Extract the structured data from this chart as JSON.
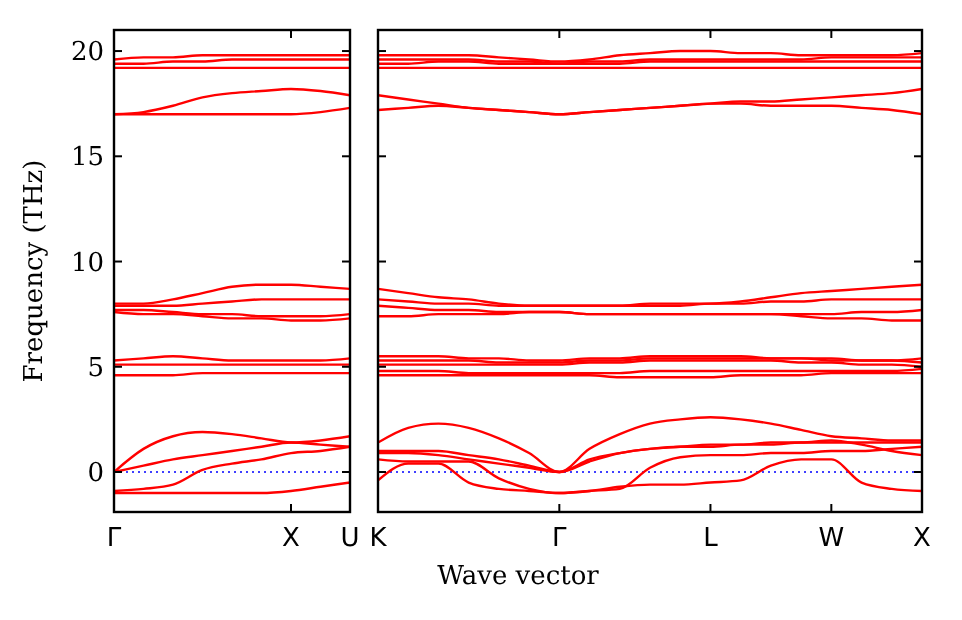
{
  "chart_data": [
    {
      "type": "line",
      "ylabel": "Frequency (THz)",
      "categories": [
        "Γ",
        null,
        null,
        null,
        null,
        null,
        "X",
        null,
        "U"
      ],
      "ylim": [
        -1.9,
        21
      ],
      "yticks": [
        0,
        5,
        10,
        15,
        20
      ],
      "line_style": "solid",
      "marker": "none",
      "ref_lines": [
        {
          "axis": "y",
          "value": 0,
          "color": "#0000ff",
          "line_style": "dotted"
        }
      ],
      "series": [
        {
          "color": "#ff0000",
          "values": [
            -1,
            -1,
            -1,
            -1,
            -1,
            -1,
            -0.9,
            -0.7,
            -0.5
          ]
        },
        {
          "color": "#ff0000",
          "values": [
            -0.9,
            -0.8,
            -0.6,
            0.1,
            0.4,
            0.6,
            0.9,
            1.0,
            1.2
          ]
        },
        {
          "color": "#ff0000",
          "values": [
            0,
            0.3,
            0.6,
            0.8,
            1.0,
            1.2,
            1.4,
            1.3,
            1.2
          ]
        },
        {
          "color": "#ff0000",
          "values": [
            0,
            1.1,
            1.7,
            1.9,
            1.8,
            1.6,
            1.4,
            1.5,
            1.7
          ]
        },
        {
          "color": "#ff0000",
          "values": [
            4.6,
            4.6,
            4.6,
            4.7,
            4.7,
            4.7,
            4.7,
            4.7,
            4.7
          ]
        },
        {
          "color": "#ff0000",
          "values": [
            5.1,
            5.1,
            5.1,
            5.1,
            5.1,
            5.1,
            5.1,
            5.1,
            5.1
          ]
        },
        {
          "color": "#ff0000",
          "values": [
            5.3,
            5.4,
            5.5,
            5.4,
            5.3,
            5.3,
            5.3,
            5.3,
            5.4
          ]
        },
        {
          "color": "#ff0000",
          "values": [
            8.0,
            8.0,
            8.2,
            8.5,
            8.8,
            8.9,
            8.9,
            8.8,
            8.7
          ]
        },
        {
          "color": "#ff0000",
          "values": [
            7.9,
            7.9,
            7.9,
            8.0,
            8.1,
            8.2,
            8.2,
            8.2,
            8.2
          ]
        },
        {
          "color": "#ff0000",
          "values": [
            7.7,
            7.7,
            7.6,
            7.5,
            7.5,
            7.4,
            7.4,
            7.4,
            7.5
          ]
        },
        {
          "color": "#ff0000",
          "values": [
            7.6,
            7.5,
            7.5,
            7.4,
            7.3,
            7.3,
            7.2,
            7.2,
            7.3
          ]
        },
        {
          "color": "#ff0000",
          "values": [
            17.0,
            17.0,
            17.0,
            17.0,
            17.0,
            17.0,
            17.0,
            17.1,
            17.3
          ]
        },
        {
          "color": "#ff0000",
          "values": [
            17.0,
            17.1,
            17.4,
            17.8,
            18.0,
            18.1,
            18.2,
            18.1,
            17.9
          ]
        },
        {
          "color": "#ff0000",
          "values": [
            19.2,
            19.2,
            19.2,
            19.2,
            19.2,
            19.2,
            19.2,
            19.2,
            19.2
          ]
        },
        {
          "color": "#ff0000",
          "values": [
            19.4,
            19.4,
            19.5,
            19.5,
            19.6,
            19.6,
            19.6,
            19.6,
            19.6
          ]
        },
        {
          "color": "#ff0000",
          "values": [
            19.6,
            19.7,
            19.7,
            19.8,
            19.8,
            19.8,
            19.8,
            19.8,
            19.8
          ]
        }
      ]
    },
    {
      "type": "line",
      "xlabel": "Wave vector",
      "tick_labels": "x",
      "categories": [
        "K",
        null,
        null,
        null,
        null,
        null,
        "Γ",
        null,
        null,
        null,
        null,
        "L",
        null,
        null,
        null,
        "W",
        null,
        null,
        "X"
      ],
      "ylim": [
        -1.9,
        21
      ],
      "yticks": [
        0,
        5,
        10,
        15,
        20
      ],
      "line_style": "solid",
      "marker": "none",
      "ref_lines": [
        {
          "axis": "y",
          "value": 0,
          "color": "#0000ff",
          "line_style": "dotted"
        }
      ],
      "series": [
        {
          "color": "#ff0000",
          "values": [
            -0.4,
            0.4,
            0.4,
            -0.5,
            -0.8,
            -0.9,
            -1.0,
            -0.9,
            -0.7,
            -0.6,
            -0.6,
            -0.5,
            -0.4,
            0.3,
            0.6,
            0.6,
            -0.5,
            -0.8,
            -0.9
          ]
        },
        {
          "color": "#ff0000",
          "values": [
            0.6,
            0.5,
            0.5,
            0.5,
            -0.3,
            -0.8,
            -1.0,
            -0.9,
            -0.8,
            0.2,
            0.7,
            0.8,
            0.8,
            0.9,
            0.9,
            1.0,
            1.0,
            1.1,
            1.2
          ]
        },
        {
          "color": "#ff0000",
          "values": [
            0.9,
            0.9,
            0.8,
            0.6,
            0.4,
            0.2,
            0,
            0.6,
            0.9,
            1.1,
            1.2,
            1.2,
            1.3,
            1.3,
            1.4,
            1.4,
            1.4,
            1.4,
            1.4
          ]
        },
        {
          "color": "#ff0000",
          "values": [
            1.0,
            1.0,
            1.0,
            0.8,
            0.6,
            0.3,
            0,
            0.5,
            0.9,
            1.1,
            1.2,
            1.3,
            1.3,
            1.4,
            1.4,
            1.5,
            1.3,
            1.0,
            0.8
          ]
        },
        {
          "color": "#ff0000",
          "values": [
            1.4,
            2.1,
            2.3,
            2.1,
            1.6,
            0.9,
            0,
            1.1,
            1.8,
            2.3,
            2.5,
            2.6,
            2.5,
            2.3,
            2.0,
            1.7,
            1.6,
            1.5,
            1.5
          ]
        },
        {
          "color": "#ff0000",
          "values": [
            4.6,
            4.6,
            4.6,
            4.6,
            4.6,
            4.6,
            4.6,
            4.6,
            4.5,
            4.5,
            4.5,
            4.5,
            4.6,
            4.6,
            4.6,
            4.7,
            4.7,
            4.7,
            4.7
          ]
        },
        {
          "color": "#ff0000",
          "values": [
            4.8,
            4.8,
            4.8,
            4.7,
            4.7,
            4.7,
            4.7,
            4.7,
            4.7,
            4.8,
            4.8,
            4.8,
            4.8,
            4.8,
            4.8,
            4.8,
            4.8,
            4.8,
            4.9
          ]
        },
        {
          "color": "#ff0000",
          "values": [
            5.1,
            5.1,
            5.1,
            5.1,
            5.1,
            5.1,
            5.1,
            5.2,
            5.2,
            5.3,
            5.3,
            5.3,
            5.3,
            5.3,
            5.2,
            5.2,
            5.1,
            5.1,
            5.0
          ]
        },
        {
          "color": "#ff0000",
          "values": [
            5.3,
            5.3,
            5.3,
            5.3,
            5.2,
            5.2,
            5.2,
            5.3,
            5.3,
            5.4,
            5.4,
            5.4,
            5.4,
            5.4,
            5.4,
            5.4,
            5.3,
            5.3,
            5.2
          ]
        },
        {
          "color": "#ff0000",
          "values": [
            5.5,
            5.5,
            5.5,
            5.4,
            5.4,
            5.3,
            5.3,
            5.4,
            5.4,
            5.5,
            5.5,
            5.5,
            5.5,
            5.4,
            5.4,
            5.3,
            5.3,
            5.3,
            5.4
          ]
        },
        {
          "color": "#ff0000",
          "values": [
            8.7,
            8.5,
            8.3,
            8.2,
            8.0,
            7.9,
            7.9,
            7.9,
            7.9,
            8.0,
            8.0,
            8.0,
            8.1,
            8.3,
            8.5,
            8.6,
            8.7,
            8.8,
            8.9
          ]
        },
        {
          "color": "#ff0000",
          "values": [
            8.2,
            8.1,
            8.0,
            8.0,
            7.9,
            7.9,
            7.9,
            7.9,
            7.9,
            7.9,
            7.9,
            8.0,
            8.0,
            8.1,
            8.1,
            8.2,
            8.2,
            8.2,
            8.2
          ]
        },
        {
          "color": "#ff0000",
          "values": [
            7.9,
            7.8,
            7.7,
            7.7,
            7.6,
            7.6,
            7.6,
            7.5,
            7.5,
            7.5,
            7.5,
            7.5,
            7.5,
            7.5,
            7.4,
            7.3,
            7.3,
            7.2,
            7.2
          ]
        },
        {
          "color": "#ff0000",
          "values": [
            7.4,
            7.4,
            7.5,
            7.5,
            7.5,
            7.6,
            7.6,
            7.5,
            7.5,
            7.5,
            7.5,
            7.5,
            7.5,
            7.5,
            7.5,
            7.5,
            7.6,
            7.6,
            7.7
          ]
        },
        {
          "color": "#ff0000",
          "values": [
            17.9,
            17.7,
            17.5,
            17.3,
            17.2,
            17.1,
            17.0,
            17.1,
            17.2,
            17.3,
            17.4,
            17.5,
            17.6,
            17.6,
            17.7,
            17.8,
            17.9,
            18.0,
            18.2
          ]
        },
        {
          "color": "#ff0000",
          "values": [
            17.2,
            17.3,
            17.4,
            17.3,
            17.2,
            17.1,
            17.0,
            17.1,
            17.2,
            17.3,
            17.4,
            17.5,
            17.5,
            17.4,
            17.4,
            17.4,
            17.3,
            17.2,
            17.0
          ]
        },
        {
          "color": "#ff0000",
          "values": [
            19.2,
            19.2,
            19.2,
            19.2,
            19.2,
            19.2,
            19.2,
            19.2,
            19.2,
            19.2,
            19.2,
            19.2,
            19.2,
            19.2,
            19.2,
            19.2,
            19.2,
            19.2,
            19.2
          ]
        },
        {
          "color": "#ff0000",
          "values": [
            19.4,
            19.4,
            19.5,
            19.5,
            19.4,
            19.4,
            19.4,
            19.4,
            19.4,
            19.5,
            19.5,
            19.5,
            19.5,
            19.5,
            19.5,
            19.5,
            19.5,
            19.5,
            19.5
          ]
        },
        {
          "color": "#ff0000",
          "values": [
            19.6,
            19.6,
            19.6,
            19.6,
            19.5,
            19.5,
            19.4,
            19.5,
            19.5,
            19.6,
            19.6,
            19.6,
            19.6,
            19.6,
            19.6,
            19.7,
            19.7,
            19.7,
            19.7
          ]
        },
        {
          "color": "#ff0000",
          "values": [
            19.8,
            19.8,
            19.8,
            19.8,
            19.7,
            19.6,
            19.5,
            19.6,
            19.8,
            19.9,
            20.0,
            20.0,
            19.9,
            19.9,
            19.8,
            19.8,
            19.8,
            19.8,
            19.9
          ]
        }
      ]
    }
  ]
}
